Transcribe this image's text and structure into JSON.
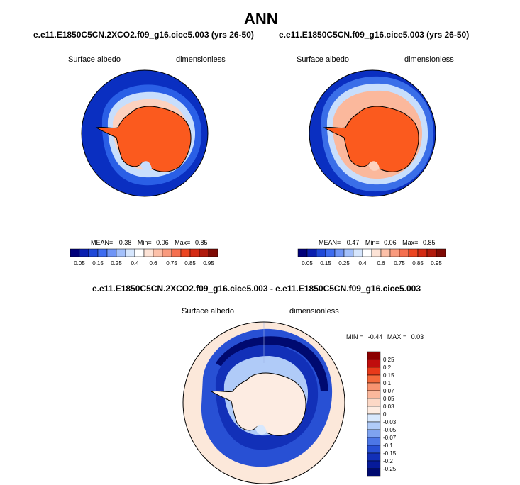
{
  "page_title": "ANN",
  "colors": {
    "ocean_low": "#0a2fc1",
    "ocean_mid": "#2a5fe6",
    "sea_ice_light": "#c8defc",
    "continent": "#fb5a1e",
    "coast_pale": "#fcd2c0",
    "diff_zero": "#fce8da"
  },
  "panels": [
    {
      "id": "left",
      "case_title": "e.e11.E1850C5CN.2XCO2.f09_g16.cice5.003 (yrs 26-50)",
      "variable": "Surface albedo",
      "units": "dimensionless",
      "stats": {
        "mean_label": "MEAN=",
        "mean": "0.38",
        "min_label": "Min=",
        "min": "0.06",
        "max_label": "Max=",
        "max": "0.85"
      }
    },
    {
      "id": "right",
      "case_title": "e.e11.E1850C5CN.f09_g16.cice5.003 (yrs 26-50)",
      "variable": "Surface albedo",
      "units": "dimensionless",
      "stats": {
        "mean_label": "MEAN=",
        "mean": "0.47",
        "min_label": "Min=",
        "min": "0.06",
        "max_label": "Max=",
        "max": "0.85"
      }
    }
  ],
  "horizontal_colorbar": {
    "colors": [
      "#00007a",
      "#0a1fb0",
      "#1f48d8",
      "#3e6cf0",
      "#6f95f7",
      "#a3c0fb",
      "#d6e6fd",
      "#ffffff",
      "#fde3d6",
      "#fcc0a8",
      "#f99a7d",
      "#f56f4f",
      "#ec4622",
      "#d42b14",
      "#b11a0c",
      "#7f0a04"
    ],
    "labels": [
      "0.05",
      "0.15",
      "0.25",
      "0.4",
      "0.6",
      "0.75",
      "0.85",
      "0.95"
    ]
  },
  "diff_panel": {
    "title": "e.e11.E1850C5CN.2XCO2.f09_g16.cice5.003 - e.e11.E1850C5CN.f09_g16.cice5.003",
    "variable": "Surface albedo",
    "units": "dimensionless",
    "stats": {
      "min_label": "MIN =",
      "min": "-0.44",
      "max_label": "MAX =",
      "max": "0.03"
    }
  },
  "vertical_colorbar": {
    "colors": [
      "#8b0000",
      "#c00d0d",
      "#e83a1a",
      "#f46a3c",
      "#f99470",
      "#fbb89c",
      "#fcd8c6",
      "#fdece2",
      "#d8e8fd",
      "#b0cbf8",
      "#7fa3f0",
      "#4d77e6",
      "#2850d4",
      "#1230b8",
      "#061a9a",
      "#000a70"
    ],
    "labels": [
      "0.25",
      "0.2",
      "0.15",
      "0.1",
      "0.07",
      "0.05",
      "0.03",
      "0",
      "-0.03",
      "-0.05",
      "-0.07",
      "-0.1",
      "-0.15",
      "-0.2",
      "-0.25"
    ]
  }
}
